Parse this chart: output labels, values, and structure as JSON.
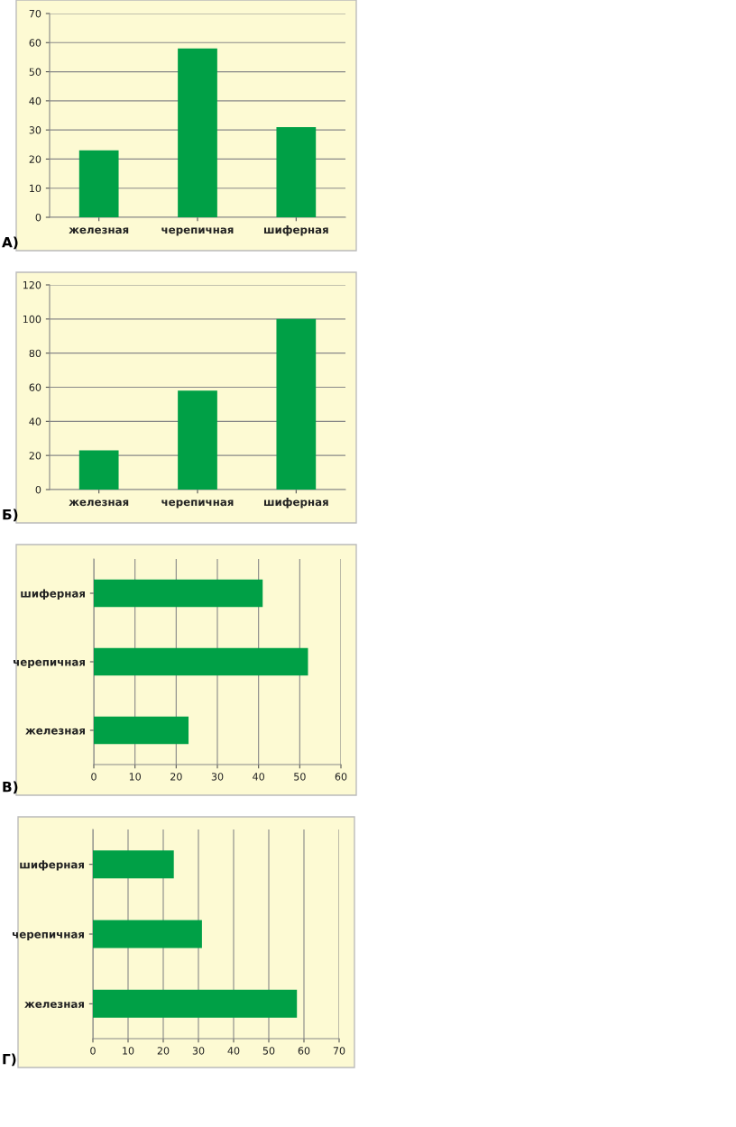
{
  "chart_data": [
    {
      "type": "bar",
      "categories": [
        "железная",
        "черепичная",
        "шиферная"
      ],
      "values": [
        23,
        58,
        31
      ],
      "color": "#00a046",
      "ylim": [
        0,
        70
      ],
      "yticks": [
        0,
        10,
        20,
        30,
        40,
        50,
        60,
        70
      ],
      "grid": "y",
      "annotations": [
        "А)"
      ]
    },
    {
      "type": "bar",
      "categories": [
        "железная",
        "черепичная",
        "шиферная"
      ],
      "values": [
        23,
        58,
        100
      ],
      "color": "#00a046",
      "ylim": [
        0,
        120
      ],
      "yticks": [
        0,
        20,
        40,
        60,
        80,
        100,
        120
      ],
      "grid": "y",
      "annotations": [
        "Б)"
      ]
    },
    {
      "type": "bar",
      "orientation": "horizontal",
      "categories": [
        "шиферная",
        "черепичная",
        "железная"
      ],
      "values": [
        41,
        52,
        23
      ],
      "color": "#00a046",
      "xlim": [
        0,
        60
      ],
      "xticks": [
        0,
        10,
        20,
        30,
        40,
        50,
        60
      ],
      "grid": "x",
      "annotations": [
        "В)"
      ]
    },
    {
      "type": "bar",
      "orientation": "horizontal",
      "categories": [
        "шиферная",
        "черепичная",
        "железная"
      ],
      "values": [
        23,
        31,
        58
      ],
      "color": "#00a046",
      "xlim": [
        0,
        70
      ],
      "xticks": [
        0,
        10,
        20,
        30,
        40,
        50,
        60,
        70
      ],
      "grid": "x",
      "annotations": [
        "Г)"
      ]
    }
  ]
}
